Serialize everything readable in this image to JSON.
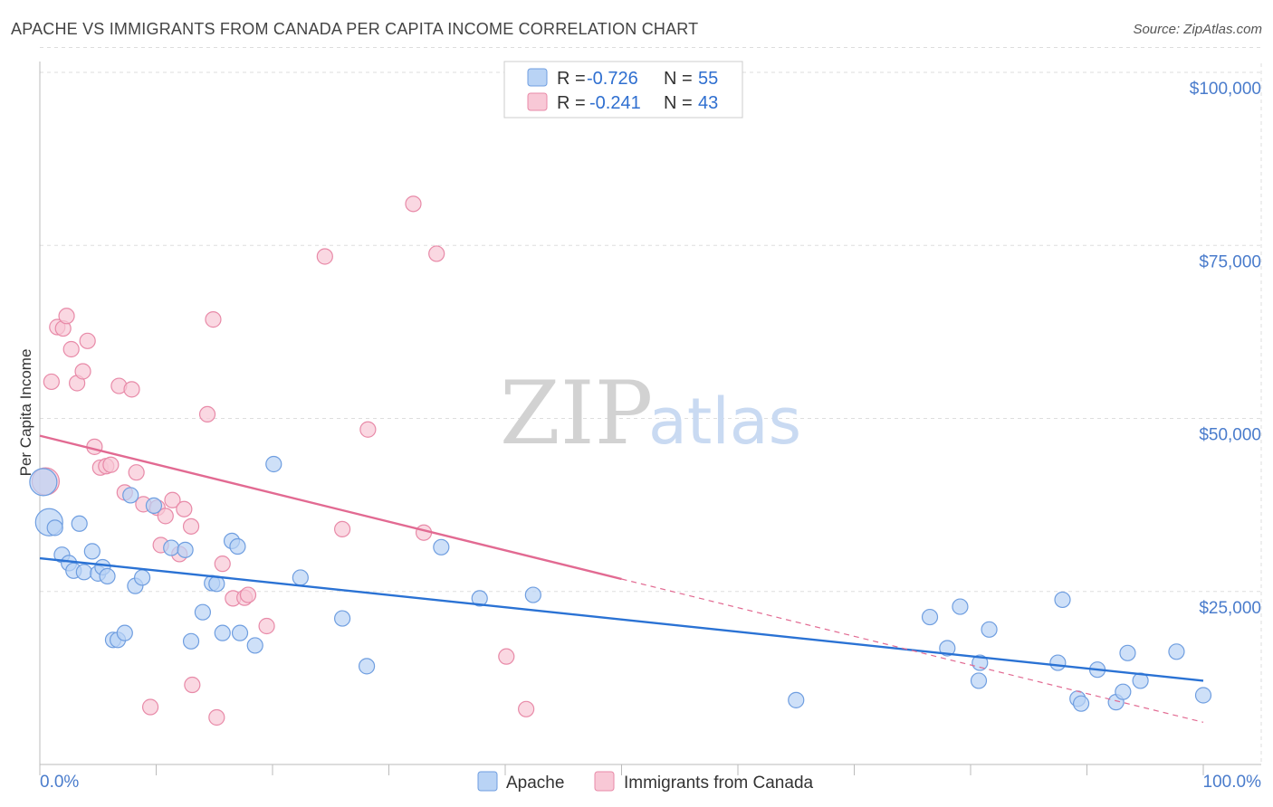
{
  "title": "APACHE VS IMMIGRANTS FROM CANADA PER CAPITA INCOME CORRELATION CHART",
  "source": "Source: ZipAtlas.com",
  "watermark": {
    "zip": "ZIP",
    "atlas": "atlas"
  },
  "legend": {
    "rows": [
      {
        "r_label": "R =",
        "r_value": "-0.726",
        "n_label": "N =",
        "n_value": "55"
      },
      {
        "r_label": "R =",
        "r_value": "-0.241",
        "n_label": "N =",
        "n_value": "43"
      }
    ]
  },
  "bottom_legend": [
    "Apache",
    "Immigrants from Canada"
  ],
  "chart_data": {
    "type": "scatter",
    "title": "APACHE VS IMMIGRANTS FROM CANADA PER CAPITA INCOME CORRELATION CHART",
    "xlabel": "",
    "ylabel": "Per Capita Income",
    "xlim": [
      0,
      100
    ],
    "ylim": [
      0,
      105000
    ],
    "x_tick_labels": [
      "0.0%",
      "100.0%"
    ],
    "y_ticks": [
      25000,
      50000,
      75000,
      100000
    ],
    "y_tick_labels": [
      "$25,000",
      "$50,000",
      "$75,000",
      "$100,000"
    ],
    "grid": true,
    "legend_position": "top-center",
    "colors": {
      "apache_fill": "#b9d3f5",
      "apache_stroke": "#6f9ee0",
      "apache_line": "#2a72d4",
      "canada_fill": "#f8c8d6",
      "canada_stroke": "#e88aa8",
      "canada_line": "#e26a92",
      "grid": "#dddddd",
      "axis_text": "#4a7ccc"
    },
    "series": [
      {
        "name": "Apache",
        "points": [
          [
            0.3,
            40800
          ],
          [
            0.8,
            35000
          ],
          [
            1.3,
            34200
          ],
          [
            1.9,
            30300
          ],
          [
            2.5,
            29100
          ],
          [
            2.9,
            28000
          ],
          [
            3.4,
            34800
          ],
          [
            3.8,
            27800
          ],
          [
            4.5,
            30800
          ],
          [
            5.0,
            27600
          ],
          [
            5.4,
            28500
          ],
          [
            5.8,
            27200
          ],
          [
            6.3,
            18000
          ],
          [
            6.7,
            18000
          ],
          [
            7.3,
            19000
          ],
          [
            7.8,
            38900
          ],
          [
            8.2,
            25800
          ],
          [
            8.8,
            27000
          ],
          [
            9.8,
            37400
          ],
          [
            11.3,
            31300
          ],
          [
            12.5,
            31000
          ],
          [
            13.0,
            17800
          ],
          [
            14.0,
            22000
          ],
          [
            14.8,
            26200
          ],
          [
            15.2,
            26100
          ],
          [
            15.7,
            19000
          ],
          [
            16.5,
            32300
          ],
          [
            17.0,
            31500
          ],
          [
            17.2,
            19000
          ],
          [
            18.5,
            17200
          ],
          [
            20.1,
            43400
          ],
          [
            22.4,
            27000
          ],
          [
            26.0,
            21100
          ],
          [
            28.1,
            14200
          ],
          [
            34.5,
            31400
          ],
          [
            37.8,
            24000
          ],
          [
            42.4,
            24500
          ],
          [
            65.0,
            9300
          ],
          [
            76.5,
            21300
          ],
          [
            78.0,
            16800
          ],
          [
            79.1,
            22800
          ],
          [
            80.7,
            12100
          ],
          [
            80.8,
            14700
          ],
          [
            81.6,
            19500
          ],
          [
            87.5,
            14700
          ],
          [
            87.9,
            23800
          ],
          [
            89.2,
            9500
          ],
          [
            89.5,
            8800
          ],
          [
            90.9,
            13700
          ],
          [
            92.5,
            9000
          ],
          [
            93.1,
            10500
          ],
          [
            93.5,
            16100
          ],
          [
            94.6,
            12100
          ],
          [
            97.7,
            16300
          ],
          [
            100.0,
            10000
          ]
        ]
      },
      {
        "name": "Immigrants from Canada",
        "points": [
          [
            0.5,
            40900
          ],
          [
            1.0,
            55300
          ],
          [
            1.5,
            63200
          ],
          [
            2.0,
            63000
          ],
          [
            2.3,
            64800
          ],
          [
            2.7,
            60000
          ],
          [
            3.2,
            55100
          ],
          [
            3.7,
            56800
          ],
          [
            4.1,
            61200
          ],
          [
            4.7,
            45900
          ],
          [
            5.2,
            42900
          ],
          [
            5.7,
            43100
          ],
          [
            6.1,
            43300
          ],
          [
            6.8,
            54700
          ],
          [
            7.3,
            39300
          ],
          [
            7.9,
            54200
          ],
          [
            8.3,
            42200
          ],
          [
            8.9,
            37600
          ],
          [
            9.5,
            8300
          ],
          [
            10.1,
            37100
          ],
          [
            10.4,
            31700
          ],
          [
            10.8,
            35900
          ],
          [
            11.4,
            38200
          ],
          [
            12.0,
            30400
          ],
          [
            12.4,
            36900
          ],
          [
            13.0,
            34400
          ],
          [
            13.1,
            11500
          ],
          [
            14.4,
            50600
          ],
          [
            14.9,
            64300
          ],
          [
            15.2,
            6800
          ],
          [
            15.7,
            29000
          ],
          [
            16.6,
            24000
          ],
          [
            17.6,
            24100
          ],
          [
            17.9,
            24500
          ],
          [
            19.5,
            20000
          ],
          [
            24.5,
            73400
          ],
          [
            26.0,
            34000
          ],
          [
            28.2,
            48400
          ],
          [
            32.1,
            81000
          ],
          [
            33.0,
            33500
          ],
          [
            34.1,
            73800
          ],
          [
            40.1,
            15600
          ],
          [
            41.8,
            8000
          ]
        ]
      }
    ],
    "trend_lines": [
      {
        "series": "Apache",
        "x": [
          0,
          100
        ],
        "y": [
          29800,
          12100
        ],
        "style": "solid"
      },
      {
        "series": "Immigrants from Canada",
        "x": [
          0,
          50
        ],
        "y": [
          47500,
          26800
        ],
        "style": "solid"
      },
      {
        "series": "Immigrants from Canada",
        "x": [
          50,
          100
        ],
        "y": [
          26800,
          6100
        ],
        "style": "dashed"
      }
    ]
  }
}
